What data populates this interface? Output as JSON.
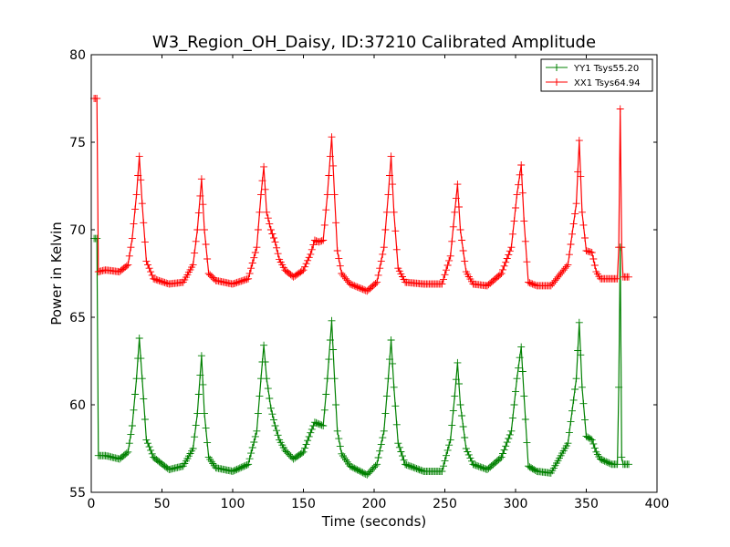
{
  "chart_data": {
    "type": "line",
    "title": "W3_Region_OH_Daisy, ID:37210 Calibrated Amplitude",
    "xlabel": "Time (seconds)",
    "ylabel": "Power in Kelvin",
    "xlim": [
      0,
      400
    ],
    "ylim": [
      55,
      80
    ],
    "xticks": [
      "0",
      "50",
      "100",
      "150",
      "200",
      "250",
      "300",
      "350",
      "400"
    ],
    "yticks": [
      "55",
      "60",
      "65",
      "70",
      "75",
      "80"
    ],
    "grid": false,
    "legend_position": "top-right",
    "series": [
      {
        "name": "YY1 Tsys55.20",
        "color": "#008000",
        "marker": "plus",
        "x": [
          2,
          4,
          5,
          10,
          20,
          26,
          29,
          32,
          34,
          36,
          39,
          44,
          55,
          65,
          72,
          75,
          78,
          80,
          83,
          88,
          100,
          111,
          117,
          120,
          122,
          124,
          127,
          130,
          133,
          137,
          143,
          150,
          155,
          158,
          161,
          164,
          167,
          170,
          172,
          174,
          177,
          183,
          195,
          202,
          207,
          210,
          212,
          214,
          217,
          222,
          235,
          248,
          254,
          257,
          259,
          261,
          265,
          270,
          280,
          290,
          297,
          301,
          304,
          306,
          309,
          315,
          325,
          337,
          343,
          345,
          347,
          350,
          354,
          357,
          360,
          368,
          372,
          373,
          374,
          375,
          376,
          377,
          378,
          380
        ],
        "y": [
          69.5,
          69.5,
          57.1,
          57.1,
          56.9,
          57.3,
          58.8,
          61.5,
          63.8,
          61.5,
          58.0,
          57.0,
          56.3,
          56.5,
          57.5,
          59.5,
          62.8,
          59.5,
          57.0,
          56.4,
          56.2,
          56.6,
          58.5,
          61.5,
          63.4,
          61.5,
          59.8,
          58.8,
          58.0,
          57.4,
          56.9,
          57.3,
          58.4,
          59.0,
          58.9,
          58.8,
          61.5,
          64.8,
          61.5,
          58.5,
          57.2,
          56.5,
          56.0,
          56.6,
          58.5,
          61.5,
          63.7,
          61.0,
          57.8,
          56.6,
          56.2,
          56.2,
          58.0,
          60.5,
          62.4,
          60.0,
          57.5,
          56.6,
          56.3,
          57.0,
          58.5,
          61.5,
          63.3,
          60.5,
          56.5,
          56.2,
          56.1,
          57.8,
          61.5,
          64.7,
          61.0,
          58.2,
          58.0,
          57.3,
          56.9,
          56.6,
          56.6,
          61.0,
          69.0,
          57.0,
          56.6,
          56.6,
          56.6,
          56.6
        ]
      },
      {
        "name": "XX1 Tsys64.94",
        "color": "#ff0000",
        "marker": "plus",
        "x": [
          2,
          4,
          5,
          10,
          20,
          26,
          29,
          32,
          34,
          36,
          39,
          44,
          55,
          65,
          72,
          75,
          78,
          80,
          83,
          88,
          100,
          111,
          117,
          120,
          122,
          124,
          127,
          130,
          133,
          137,
          143,
          150,
          155,
          158,
          161,
          164,
          167,
          170,
          172,
          174,
          177,
          183,
          195,
          202,
          207,
          210,
          212,
          214,
          217,
          222,
          235,
          248,
          254,
          257,
          259,
          261,
          265,
          270,
          280,
          290,
          297,
          301,
          304,
          306,
          309,
          315,
          325,
          337,
          343,
          345,
          347,
          350,
          354,
          357,
          360,
          368,
          372,
          373,
          374,
          375,
          376,
          377,
          378,
          380
        ],
        "y": [
          77.5,
          77.5,
          67.6,
          67.7,
          67.6,
          68.0,
          69.5,
          72.0,
          74.2,
          71.5,
          68.2,
          67.2,
          66.9,
          67.0,
          68.0,
          70.0,
          72.9,
          70.0,
          67.5,
          67.1,
          66.9,
          67.2,
          69.0,
          72.0,
          73.6,
          71.0,
          70.0,
          69.3,
          68.3,
          67.7,
          67.3,
          67.7,
          68.6,
          69.4,
          69.3,
          69.4,
          72.0,
          75.3,
          72.0,
          68.8,
          67.5,
          66.9,
          66.5,
          67.0,
          69.0,
          72.0,
          74.2,
          71.0,
          67.8,
          67.0,
          66.9,
          66.9,
          68.5,
          71.0,
          72.6,
          70.0,
          67.6,
          66.9,
          66.8,
          67.5,
          69.0,
          72.0,
          73.7,
          70.5,
          67.0,
          66.8,
          66.8,
          68.0,
          71.5,
          75.1,
          71.0,
          68.8,
          68.7,
          67.6,
          67.2,
          67.2,
          67.2,
          69.0,
          76.9,
          69.0,
          67.3,
          67.3,
          67.3,
          67.3
        ]
      }
    ]
  }
}
